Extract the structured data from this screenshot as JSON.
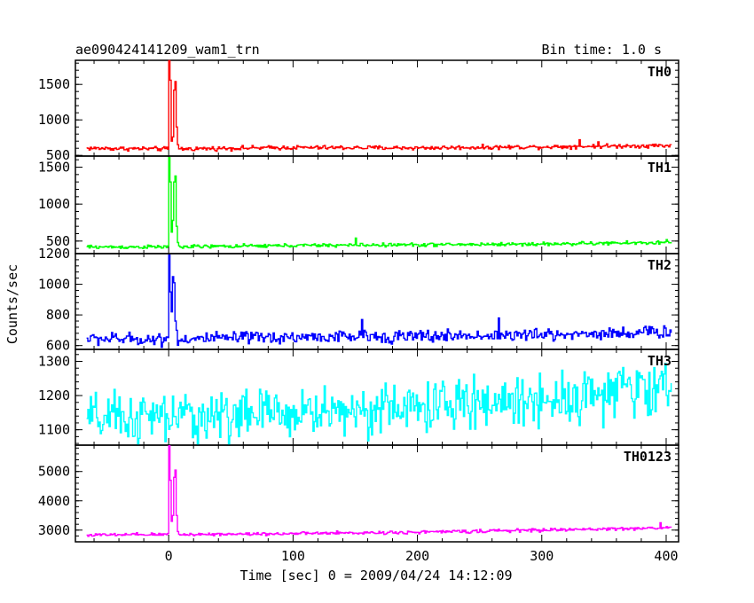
{
  "chart_data": {
    "type": "line",
    "title_left": "ae090424141209_wam1_trn",
    "title_right": "Bin time: 1.0 s",
    "xlabel": "Time [sec] 0 = 2009/04/24 14:12:09",
    "ylabel": "Counts/sec",
    "xlim": [
      -75,
      410
    ],
    "x_ticks": [
      0,
      100,
      200,
      300,
      400
    ],
    "x_range": [
      -66,
      404
    ],
    "panels": [
      {
        "name": "TH0",
        "color": "#ff0000",
        "ylim": [
          490,
          1840
        ],
        "y_ticks": [
          500,
          1000,
          1500
        ],
        "baseline": [
          [
            -66,
            600
          ],
          [
            0,
            590
          ],
          [
            100,
            610
          ],
          [
            200,
            605
          ],
          [
            300,
            620
          ],
          [
            404,
            640
          ]
        ],
        "noise": 22,
        "spikes": [
          [
            0,
            1840
          ],
          [
            1,
            1560
          ],
          [
            2,
            700
          ],
          [
            3,
            760
          ],
          [
            4,
            1420
          ],
          [
            5,
            1540
          ],
          [
            6,
            900
          ],
          [
            7,
            650
          ]
        ],
        "excursions": [
          [
            330,
            720
          ],
          [
            345,
            690
          ]
        ]
      },
      {
        "name": "TH1",
        "color": "#00ff00",
        "ylim": [
          330,
          1650
        ],
        "y_ticks": [
          500,
          1000,
          1500
        ],
        "baseline": [
          [
            -66,
            420
          ],
          [
            0,
            420
          ],
          [
            100,
            440
          ],
          [
            200,
            450
          ],
          [
            300,
            460
          ],
          [
            404,
            480
          ]
        ],
        "noise": 18,
        "spikes": [
          [
            0,
            1630
          ],
          [
            1,
            1300
          ],
          [
            2,
            620
          ],
          [
            3,
            780
          ],
          [
            4,
            1300
          ],
          [
            5,
            1380
          ],
          [
            6,
            700
          ],
          [
            7,
            480
          ]
        ],
        "excursions": [
          [
            150,
            540
          ],
          [
            400,
            520
          ]
        ]
      },
      {
        "name": "TH2",
        "color": "#0000ff",
        "ylim": [
          575,
          1200
        ],
        "y_ticks": [
          600,
          800,
          1000,
          1200
        ],
        "baseline": [
          [
            -66,
            645
          ],
          [
            0,
            640
          ],
          [
            100,
            655
          ],
          [
            200,
            660
          ],
          [
            300,
            670
          ],
          [
            404,
            690
          ]
        ],
        "noise": 30,
        "spikes": [
          [
            0,
            1190
          ],
          [
            1,
            950
          ],
          [
            2,
            820
          ],
          [
            3,
            1050
          ],
          [
            4,
            1010
          ],
          [
            5,
            760
          ],
          [
            6,
            700
          ]
        ],
        "excursions": [
          [
            155,
            770
          ],
          [
            265,
            780
          ]
        ]
      },
      {
        "name": "TH3",
        "color": "#00ffff",
        "ylim": [
          1055,
          1335
        ],
        "y_ticks": [
          1100,
          1200,
          1300
        ],
        "baseline": [
          [
            -66,
            1130
          ],
          [
            0,
            1135
          ],
          [
            100,
            1150
          ],
          [
            200,
            1165
          ],
          [
            300,
            1190
          ],
          [
            404,
            1225
          ]
        ],
        "noise": 55,
        "spikes": [],
        "excursions": []
      },
      {
        "name": "TH0123",
        "color": "#ff00ff",
        "ylim": [
          2600,
          5900
        ],
        "y_ticks": [
          3000,
          4000,
          5000
        ],
        "baseline": [
          [
            -66,
            2830
          ],
          [
            0,
            2850
          ],
          [
            100,
            2880
          ],
          [
            200,
            2930
          ],
          [
            300,
            3000
          ],
          [
            404,
            3080
          ]
        ],
        "noise": 40,
        "spikes": [
          [
            0,
            5880
          ],
          [
            1,
            4700
          ],
          [
            2,
            3300
          ],
          [
            3,
            3500
          ],
          [
            4,
            4800
          ],
          [
            5,
            5050
          ],
          [
            6,
            3500
          ],
          [
            7,
            2950
          ]
        ],
        "excursions": [
          [
            395,
            3250
          ]
        ]
      }
    ]
  }
}
